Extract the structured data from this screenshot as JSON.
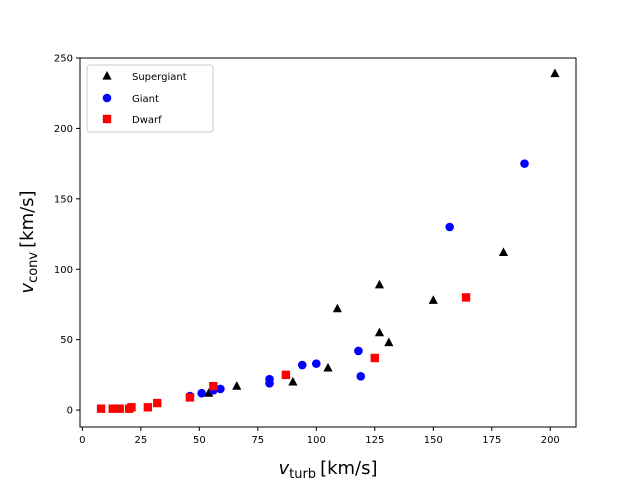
{
  "chart_data": {
    "type": "scatter",
    "title": "",
    "xlabel": {
      "symbol": "v",
      "sub": "turb",
      "unit": "[km/s]"
    },
    "ylabel": {
      "symbol": "v",
      "sub": "conv",
      "unit": "[km/s]"
    },
    "xlim": [
      -1,
      211
    ],
    "ylim": [
      -12,
      250
    ],
    "xticks": [
      0,
      25,
      50,
      75,
      100,
      125,
      150,
      175,
      200
    ],
    "yticks": [
      0,
      50,
      100,
      150,
      200,
      250
    ],
    "grid": false,
    "legend_position": "top-left",
    "series": [
      {
        "name": "Supergiant",
        "marker": "triangle",
        "color": "#000000",
        "points": [
          [
            54,
            12
          ],
          [
            66,
            17
          ],
          [
            90,
            20
          ],
          [
            105,
            30
          ],
          [
            109,
            72
          ],
          [
            127,
            55
          ],
          [
            127,
            89
          ],
          [
            131,
            48
          ],
          [
            150,
            78
          ],
          [
            180,
            112
          ],
          [
            202,
            239
          ]
        ]
      },
      {
        "name": "Giant",
        "marker": "circle",
        "color": "#0000ff",
        "points": [
          [
            46,
            10
          ],
          [
            51,
            12
          ],
          [
            56,
            14
          ],
          [
            59,
            15
          ],
          [
            80,
            19
          ],
          [
            80,
            22
          ],
          [
            94,
            32
          ],
          [
            100,
            33
          ],
          [
            118,
            42
          ],
          [
            119,
            24
          ],
          [
            157,
            130
          ],
          [
            189,
            175
          ]
        ]
      },
      {
        "name": "Dwarf",
        "marker": "square",
        "color": "#ff0000",
        "points": [
          [
            8,
            1
          ],
          [
            13,
            1
          ],
          [
            16,
            1
          ],
          [
            20,
            1
          ],
          [
            21,
            2
          ],
          [
            28,
            2
          ],
          [
            32,
            5
          ],
          [
            46,
            9
          ],
          [
            56,
            17
          ],
          [
            87,
            25
          ],
          [
            125,
            37
          ],
          [
            164,
            80
          ]
        ]
      }
    ]
  }
}
